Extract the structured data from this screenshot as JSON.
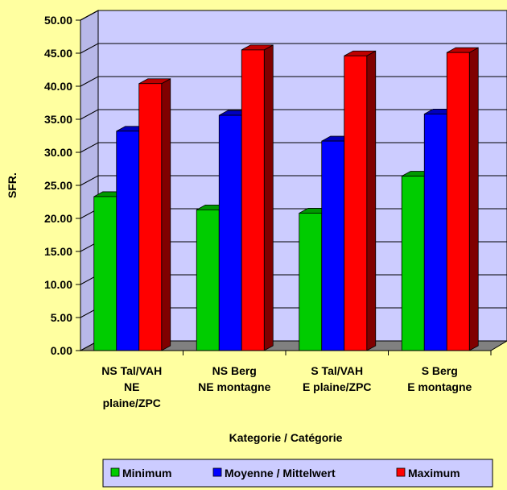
{
  "chart_data": {
    "type": "bar",
    "categories": [
      [
        "NS Tal/VAH",
        "NE",
        "plaine/ZPC"
      ],
      [
        "NS Berg",
        "NE montagne"
      ],
      [
        "S Tal/VAH",
        "E plaine/ZPC"
      ],
      [
        "S Berg",
        "E montagne"
      ]
    ],
    "series": [
      {
        "name": "Minimum",
        "values": [
          23.3,
          21.3,
          20.8,
          26.4
        ],
        "color": "#00CC00"
      },
      {
        "name": "Moyenne / Mittelwert",
        "values": [
          33.2,
          35.6,
          31.7,
          35.8
        ],
        "color": "#0000FF"
      },
      {
        "name": "Maximum",
        "values": [
          40.4,
          45.5,
          44.6,
          45.1
        ],
        "color": "#FF0000"
      }
    ],
    "title": "",
    "xlabel": "Kategorie / Catégorie",
    "ylabel": "SFR.",
    "ylim": [
      0,
      50
    ],
    "yticks": [
      "0.00",
      "5.00",
      "10.00",
      "15.00",
      "20.00",
      "25.00",
      "30.00",
      "35.00",
      "40.00",
      "45.00",
      "50.00"
    ],
    "grid": true,
    "legend_position": "bottom",
    "three_d": true,
    "plot_background": "#CCCCFF",
    "page_background": "#FFFFA0"
  }
}
